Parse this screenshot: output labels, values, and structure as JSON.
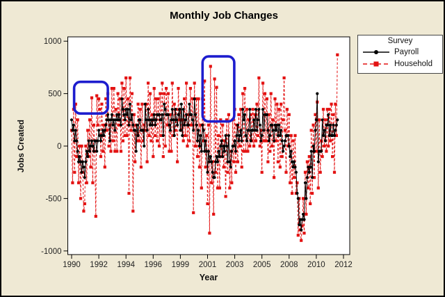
{
  "title": "Monthly Job Changes",
  "colors": {
    "background": "#EFE9D4",
    "plot_background": "#FFFFFF",
    "payroll": "#000000",
    "household": "#E31212",
    "annotation_blue": "#1D1DCE",
    "axis": "#000000",
    "tick_text": "#222222"
  },
  "legend": {
    "title": "Survey",
    "items": [
      {
        "label": "Payroll",
        "color": "#000000",
        "marker": "circle",
        "line": "solid"
      },
      {
        "label": "Household",
        "color": "#E31212",
        "marker": "square",
        "line": "dashed"
      }
    ]
  },
  "axes": {
    "y_label": "Jobs Created",
    "x_label": "Year"
  },
  "chart_data": {
    "type": "line",
    "title": "Monthly Job Changes",
    "xlabel": "Year",
    "ylabel": "Jobs Created",
    "x_unit": "months since Jan 1990 (monthly series)",
    "x_tick_months": [
      0,
      27,
      54,
      81,
      108,
      135,
      162,
      189,
      216,
      243,
      270
    ],
    "x_tick_labels": [
      "1990",
      "1992",
      "1994",
      "1996",
      "1999",
      "2001",
      "2003",
      "2005",
      "2008",
      "2010",
      "2012"
    ],
    "y_ticks": [
      1000,
      500,
      0,
      -500,
      -1000
    ],
    "ylim": [
      -1050,
      1040
    ],
    "grid": false,
    "legend_position": "outside-top-right",
    "series": [
      {
        "name": "Payroll",
        "color": "#000000",
        "line": "solid",
        "marker": "circle",
        "values": [
          250,
          150,
          200,
          50,
          150,
          50,
          -50,
          -150,
          -100,
          -150,
          -250,
          -150,
          -200,
          -300,
          -150,
          -50,
          -100,
          50,
          -50,
          0,
          50,
          0,
          -50,
          50,
          50,
          -50,
          50,
          150,
          100,
          50,
          100,
          150,
          100,
          150,
          200,
          250,
          300,
          250,
          50,
          250,
          300,
          200,
          250,
          150,
          250,
          300,
          250,
          300,
          250,
          200,
          450,
          350,
          300,
          250,
          350,
          300,
          350,
          200,
          400,
          250,
          300,
          200,
          150,
          150,
          -50,
          200,
          100,
          250,
          250,
          150,
          150,
          150,
          0,
          400,
          250,
          150,
          350,
          250,
          200,
          250,
          200,
          250,
          300,
          200,
          250,
          300,
          300,
          300,
          250,
          250,
          300,
          100,
          400,
          350,
          300,
          300,
          300,
          200,
          150,
          250,
          350,
          250,
          100,
          350,
          250,
          200,
          300,
          350,
          150,
          400,
          100,
          350,
          200,
          250,
          300,
          200,
          200,
          400,
          300,
          300,
          250,
          150,
          450,
          300,
          200,
          50,
          150,
          0,
          100,
          -50,
          200,
          150,
          -50,
          50,
          -50,
          -250,
          -50,
          -150,
          -100,
          -150,
          -250,
          -300,
          -300,
          -150,
          -100,
          -150,
          -50,
          -100,
          0,
          50,
          -100,
          0,
          -50,
          100,
          0,
          -150,
          100,
          -150,
          -200,
          -50,
          0,
          0,
          50,
          -50,
          100,
          200,
          50,
          100,
          150,
          50,
          350,
          250,
          300,
          100,
          50,
          150,
          150,
          350,
          50,
          150,
          150,
          250,
          150,
          350,
          150,
          250,
          350,
          200,
          50,
          100,
          350,
          150,
          300,
          300,
          300,
          150,
          50,
          100,
          200,
          200,
          150,
          50,
          200,
          150,
          200,
          100,
          200,
          100,
          150,
          50,
          -50,
          0,
          50,
          100,
          100,
          100,
          0,
          -100,
          -50,
          -150,
          -200,
          -150,
          -200,
          -250,
          -450,
          -500,
          -750,
          -700,
          -800,
          -700,
          -650,
          -700,
          -350,
          -500,
          -300,
          -200,
          -250,
          -200,
          -50,
          -300,
          0,
          -50,
          150,
          250,
          500,
          -150,
          -50,
          -50,
          -50,
          250,
          100,
          150,
          50,
          200,
          200,
          300,
          100,
          200,
          100,
          100,
          200,
          100,
          150,
          200,
          250
        ]
      },
      {
        "name": "Household",
        "color": "#E31212",
        "line": "dashed",
        "marker": "square",
        "values": [
          150,
          -350,
          350,
          -250,
          400,
          -100,
          250,
          -350,
          0,
          -500,
          0,
          -250,
          -620,
          -550,
          0,
          -350,
          150,
          -100,
          250,
          -200,
          460,
          -350,
          200,
          -50,
          -670,
          480,
          200,
          450,
          350,
          -100,
          400,
          -50,
          200,
          -200,
          450,
          150,
          500,
          0,
          200,
          -50,
          550,
          50,
          550,
          -50,
          350,
          -50,
          500,
          200,
          450,
          -50,
          600,
          50,
          550,
          100,
          650,
          100,
          450,
          -450,
          650,
          150,
          500,
          -620,
          300,
          -150,
          200,
          50,
          400,
          50,
          350,
          -200,
          400,
          50,
          200,
          150,
          400,
          -150,
          600,
          100,
          500,
          50,
          300,
          -100,
          550,
          100,
          450,
          50,
          450,
          0,
          500,
          100,
          600,
          -100,
          500,
          0,
          550,
          200,
          500,
          -50,
          300,
          -50,
          600,
          100,
          400,
          150,
          350,
          -150,
          550,
          250,
          350,
          150,
          250,
          50,
          450,
          100,
          600,
          0,
          300,
          50,
          550,
          200,
          450,
          -635,
          600,
          0,
          450,
          -100,
          450,
          -200,
          200,
          -400,
          450,
          50,
          620,
          -200,
          100,
          -550,
          200,
          -830,
          760,
          -350,
          -150,
          -650,
          640,
          -250,
          560,
          -400,
          100,
          -400,
          250,
          -100,
          200,
          -200,
          50,
          -480,
          250,
          -250,
          300,
          -400,
          -50,
          -350,
          250,
          -150,
          350,
          -250,
          200,
          -150,
          300,
          0,
          350,
          -200,
          500,
          -50,
          550,
          -50,
          350,
          -50,
          250,
          0,
          300,
          50,
          350,
          0,
          300,
          50,
          400,
          100,
          650,
          0,
          150,
          -250,
          600,
          50,
          500,
          50,
          450,
          -150,
          300,
          -50,
          500,
          0,
          250,
          -300,
          450,
          50,
          400,
          -150,
          350,
          -200,
          400,
          -100,
          250,
          650,
          150,
          -250,
          350,
          0,
          300,
          -350,
          100,
          -450,
          50,
          -300,
          100,
          -450,
          -350,
          -850,
          -500,
          -800,
          -900,
          -760,
          -500,
          -830,
          -250,
          -650,
          -150,
          -400,
          -100,
          -550,
          150,
          -450,
          200,
          -300,
          300,
          -50,
          420,
          -400,
          250,
          -250,
          50,
          -100,
          350,
          0,
          250,
          -50,
          350,
          0,
          350,
          50,
          400,
          -100,
          300,
          -250,
          400,
          100,
          870
        ]
      }
    ],
    "annotations": [
      {
        "type": "rounded-rect",
        "color": "#1D1DCE",
        "x0_month": 2.5,
        "x1_month": 36,
        "v_low": 310,
        "v_high": 612
      },
      {
        "type": "rounded-rect",
        "color": "#1D1DCE",
        "x0_month": 130,
        "x1_month": 161.5,
        "v_low": 235,
        "v_high": 855
      }
    ]
  }
}
